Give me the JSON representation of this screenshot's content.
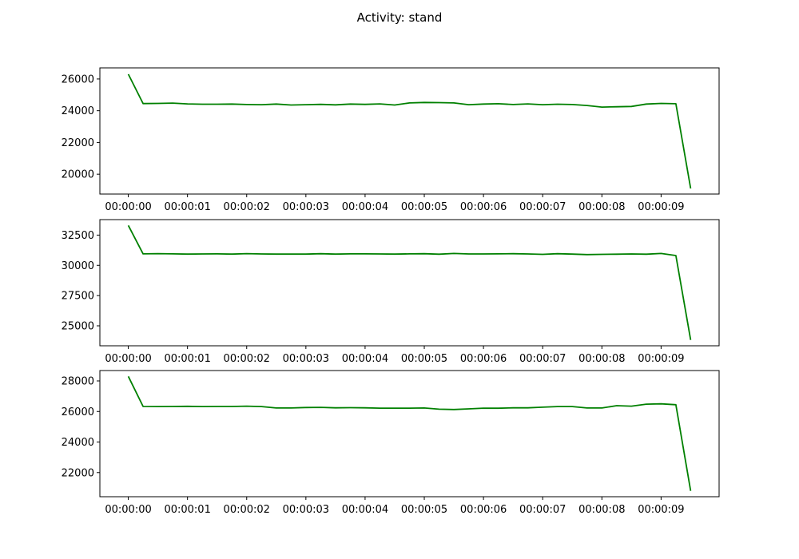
{
  "title": "Activity: stand",
  "colors": {
    "line": "#008000",
    "frame": "#000000",
    "background": "#ffffff"
  },
  "chart_data": [
    {
      "type": "line",
      "name": "panel-1",
      "x_labels": [
        "00:00:00",
        "00:00:01",
        "00:00:02",
        "00:00:03",
        "00:00:04",
        "00:00:05",
        "00:00:06",
        "00:00:07",
        "00:00:08",
        "00:00:09"
      ],
      "x": [
        0,
        0.25,
        0.5,
        0.75,
        1,
        1.25,
        1.5,
        1.75,
        2,
        2.25,
        2.5,
        2.75,
        3,
        3.25,
        3.5,
        3.75,
        4,
        4.25,
        4.5,
        4.75,
        5,
        5.25,
        5.5,
        5.75,
        6,
        6.25,
        6.5,
        6.75,
        7,
        7.25,
        7.5,
        7.75,
        8,
        8.25,
        8.5,
        8.75,
        9,
        9.25,
        9.5
      ],
      "values": [
        26300,
        24450,
        24460,
        24480,
        24430,
        24410,
        24410,
        24420,
        24390,
        24380,
        24420,
        24360,
        24380,
        24400,
        24370,
        24420,
        24400,
        24430,
        24360,
        24490,
        24520,
        24510,
        24490,
        24380,
        24420,
        24440,
        24390,
        24430,
        24380,
        24410,
        24390,
        24330,
        24230,
        24250,
        24270,
        24420,
        24460,
        24440,
        19100
      ],
      "yticks": [
        20000,
        22000,
        24000,
        26000
      ],
      "ylim": [
        18750,
        26700
      ],
      "xlim": [
        -0.48,
        9.98
      ]
    },
    {
      "type": "line",
      "name": "panel-2",
      "x_labels": [
        "00:00:00",
        "00:00:01",
        "00:00:02",
        "00:00:03",
        "00:00:04",
        "00:00:05",
        "00:00:06",
        "00:00:07",
        "00:00:08",
        "00:00:09"
      ],
      "x": [
        0,
        0.25,
        0.5,
        0.75,
        1,
        1.25,
        1.5,
        1.75,
        2,
        2.25,
        2.5,
        2.75,
        3,
        3.25,
        3.5,
        3.75,
        4,
        4.25,
        4.5,
        4.75,
        5,
        5.25,
        5.5,
        5.75,
        6,
        6.25,
        6.5,
        6.75,
        7,
        7.25,
        7.5,
        7.75,
        8,
        8.25,
        8.5,
        8.75,
        9,
        9.25,
        9.5
      ],
      "values": [
        33300,
        30950,
        30970,
        30950,
        30930,
        30940,
        30950,
        30930,
        30970,
        30940,
        30930,
        30930,
        30930,
        30960,
        30930,
        30950,
        30950,
        30940,
        30930,
        30950,
        30960,
        30920,
        30980,
        30940,
        30940,
        30950,
        30960,
        30940,
        30910,
        30960,
        30930,
        30890,
        30910,
        30920,
        30940,
        30920,
        30980,
        30810,
        23830
      ],
      "yticks": [
        25000,
        27500,
        30000,
        32500
      ],
      "ylim": [
        23350,
        33780
      ],
      "xlim": [
        -0.48,
        9.98
      ]
    },
    {
      "type": "line",
      "name": "panel-3",
      "x_labels": [
        "00:00:00",
        "00:00:01",
        "00:00:02",
        "00:00:03",
        "00:00:04",
        "00:00:05",
        "00:00:06",
        "00:00:07",
        "00:00:08",
        "00:00:09"
      ],
      "x": [
        0,
        0.25,
        0.5,
        0.75,
        1,
        1.25,
        1.5,
        1.75,
        2,
        2.25,
        2.5,
        2.75,
        3,
        3.25,
        3.5,
        3.75,
        4,
        4.25,
        4.5,
        4.75,
        5,
        5.25,
        5.5,
        5.75,
        6,
        6.25,
        6.5,
        6.75,
        7,
        7.25,
        7.5,
        7.75,
        8,
        8.25,
        8.5,
        8.75,
        9,
        9.25,
        9.5
      ],
      "values": [
        28300,
        26330,
        26320,
        26330,
        26340,
        26320,
        26330,
        26330,
        26350,
        26320,
        26230,
        26230,
        26260,
        26270,
        26240,
        26250,
        26240,
        26220,
        26220,
        26220,
        26230,
        26150,
        26130,
        26170,
        26220,
        26210,
        26240,
        26240,
        26280,
        26320,
        26320,
        26230,
        26230,
        26380,
        26350,
        26480,
        26500,
        26440,
        20800
      ],
      "yticks": [
        22000,
        24000,
        26000,
        28000
      ],
      "ylim": [
        20420,
        28680
      ],
      "xlim": [
        -0.48,
        9.98
      ]
    }
  ]
}
